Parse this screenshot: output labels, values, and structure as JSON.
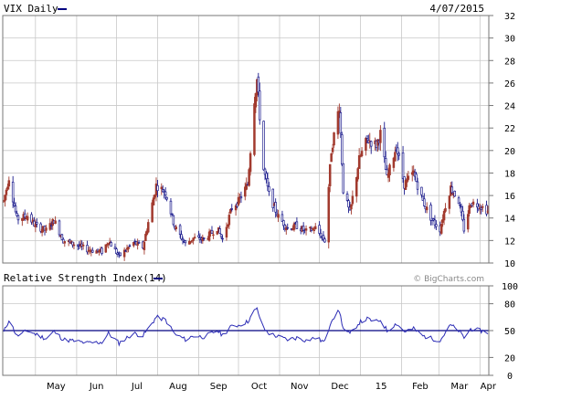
{
  "header": {
    "title": "VIX Daily",
    "date": "4/07/2015"
  },
  "rsi_header": {
    "title": "Relative Strength Index(14)"
  },
  "watermark": "© BigCharts.com",
  "colors": {
    "up": "#1a1a8c",
    "down": "#a23a2e",
    "rsi": "#2b2bb5",
    "refline": "#000080",
    "grid": "#c8c8c8",
    "frame": "#666666"
  },
  "chart_data": [
    {
      "type": "candlestick",
      "title": "VIX Daily",
      "x_ticks": [
        "May",
        "Jun",
        "Jul",
        "Aug",
        "Sep",
        "Oct",
        "Nov",
        "Dec",
        "15",
        "Feb",
        "Mar",
        "Apr"
      ],
      "ylim": [
        10,
        32
      ],
      "y_ticks": [
        10,
        12,
        14,
        16,
        18,
        20,
        22,
        24,
        26,
        28,
        30,
        32
      ],
      "grid": true,
      "x_range": [
        "2014-04-07",
        "2015-04-07"
      ],
      "series": [
        {
          "anchors": [
            [
              "2014-04-07",
              15.5
            ],
            [
              "2014-04-11",
              17.6
            ],
            [
              "2014-04-17",
              13.9
            ],
            [
              "2014-04-25",
              14.2
            ],
            [
              "2014-05-01",
              13.3
            ],
            [
              "2014-05-09",
              12.9
            ],
            [
              "2014-05-15",
              13.8
            ],
            [
              "2014-05-22",
              12.0
            ],
            [
              "2014-06-01",
              11.6
            ],
            [
              "2014-06-09",
              11.2
            ],
            [
              "2014-06-20",
              11.0
            ],
            [
              "2014-06-25",
              12.0
            ],
            [
              "2014-07-03",
              10.6
            ],
            [
              "2014-07-14",
              11.8
            ],
            [
              "2014-07-21",
              11.4
            ],
            [
              "2014-07-31",
              16.9
            ],
            [
              "2014-08-07",
              16.3
            ],
            [
              "2014-08-14",
              13.2
            ],
            [
              "2014-08-22",
              11.7
            ],
            [
              "2014-08-28",
              12.2
            ],
            [
              "2014-09-05",
              12.1
            ],
            [
              "2014-09-15",
              13.1
            ],
            [
              "2014-09-19",
              12.1
            ],
            [
              "2014-09-26",
              14.9
            ],
            [
              "2014-10-01",
              15.5
            ],
            [
              "2014-10-08",
              17.0
            ],
            [
              "2014-10-13",
              24.6
            ],
            [
              "2014-10-15",
              26.3
            ],
            [
              "2014-10-20",
              18.3
            ],
            [
              "2014-10-24",
              16.1
            ],
            [
              "2014-10-31",
              14.1
            ],
            [
              "2014-11-07",
              13.1
            ],
            [
              "2014-11-14",
              13.3
            ],
            [
              "2014-11-21",
              12.8
            ],
            [
              "2014-11-28",
              13.1
            ],
            [
              "2014-12-05",
              12.0
            ],
            [
              "2014-12-10",
              20.0
            ],
            [
              "2014-12-16",
              24.0
            ],
            [
              "2014-12-19",
              16.5
            ],
            [
              "2014-12-24",
              14.4
            ],
            [
              "2014-12-31",
              19.2
            ],
            [
              "2015-01-06",
              21.0
            ],
            [
              "2015-01-13",
              20.5
            ],
            [
              "2015-01-16",
              21.5
            ],
            [
              "2015-01-21",
              17.5
            ],
            [
              "2015-01-28",
              20.4
            ],
            [
              "2015-02-03",
              17.0
            ],
            [
              "2015-02-10",
              18.0
            ],
            [
              "2015-02-17",
              15.5
            ],
            [
              "2015-02-24",
              13.8
            ],
            [
              "2015-03-02",
              13.0
            ],
            [
              "2015-03-06",
              15.1
            ],
            [
              "2015-03-10",
              16.7
            ],
            [
              "2015-03-16",
              15.5
            ],
            [
              "2015-03-20",
              13.0
            ],
            [
              "2015-03-25",
              15.4
            ],
            [
              "2015-04-01",
              15.1
            ],
            [
              "2015-04-07",
              14.6
            ]
          ]
        }
      ]
    },
    {
      "type": "line",
      "title": "Relative Strength Index(14)",
      "x_ticks": [
        "May",
        "Jun",
        "Jul",
        "Aug",
        "Sep",
        "Oct",
        "Nov",
        "Dec",
        "15",
        "Feb",
        "Mar",
        "Apr"
      ],
      "ylim": [
        0,
        100
      ],
      "y_ticks": [
        0,
        20,
        50,
        80,
        100
      ],
      "reference_line": 50,
      "grid": true,
      "series": [
        {
          "anchors": [
            [
              "2014-04-07",
              48
            ],
            [
              "2014-04-11",
              62
            ],
            [
              "2014-04-17",
              44
            ],
            [
              "2014-04-25",
              50
            ],
            [
              "2014-05-01",
              46
            ],
            [
              "2014-05-09",
              41
            ],
            [
              "2014-05-15",
              49
            ],
            [
              "2014-05-22",
              40
            ],
            [
              "2014-06-01",
              38
            ],
            [
              "2014-06-09",
              36
            ],
            [
              "2014-06-20",
              37
            ],
            [
              "2014-06-25",
              47
            ],
            [
              "2014-07-03",
              36
            ],
            [
              "2014-07-14",
              47
            ],
            [
              "2014-07-21",
              44
            ],
            [
              "2014-07-31",
              65
            ],
            [
              "2014-08-07",
              62
            ],
            [
              "2014-08-14",
              46
            ],
            [
              "2014-08-22",
              40
            ],
            [
              "2014-08-28",
              44
            ],
            [
              "2014-09-05",
              43
            ],
            [
              "2014-09-15",
              50
            ],
            [
              "2014-09-19",
              45
            ],
            [
              "2014-09-26",
              55
            ],
            [
              "2014-10-01",
              56
            ],
            [
              "2014-10-08",
              60
            ],
            [
              "2014-10-13",
              72
            ],
            [
              "2014-10-15",
              74
            ],
            [
              "2014-10-20",
              52
            ],
            [
              "2014-10-24",
              47
            ],
            [
              "2014-10-31",
              43
            ],
            [
              "2014-11-07",
              40
            ],
            [
              "2014-11-14",
              42
            ],
            [
              "2014-11-21",
              39
            ],
            [
              "2014-11-28",
              42
            ],
            [
              "2014-12-05",
              37
            ],
            [
              "2014-12-10",
              62
            ],
            [
              "2014-12-16",
              72
            ],
            [
              "2014-12-19",
              52
            ],
            [
              "2014-12-24",
              46
            ],
            [
              "2014-12-31",
              59
            ],
            [
              "2015-01-06",
              63
            ],
            [
              "2015-01-13",
              60
            ],
            [
              "2015-01-16",
              62
            ],
            [
              "2015-01-21",
              50
            ],
            [
              "2015-01-28",
              58
            ],
            [
              "2015-02-03",
              49
            ],
            [
              "2015-02-10",
              52
            ],
            [
              "2015-02-17",
              44
            ],
            [
              "2015-02-24",
              41
            ],
            [
              "2015-03-02",
              39
            ],
            [
              "2015-03-06",
              48
            ],
            [
              "2015-03-10",
              56
            ],
            [
              "2015-03-16",
              50
            ],
            [
              "2015-03-20",
              42
            ],
            [
              "2015-03-25",
              52
            ],
            [
              "2015-04-01",
              50
            ],
            [
              "2015-04-07",
              48
            ]
          ]
        }
      ]
    }
  ]
}
